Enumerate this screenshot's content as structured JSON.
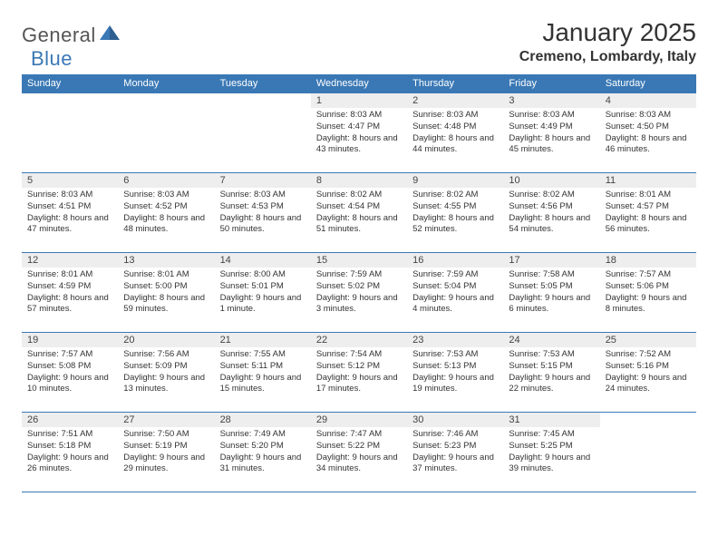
{
  "logo": {
    "text_general": "General",
    "text_blue": "Blue",
    "icon_fill": "#3a78b5"
  },
  "title": {
    "month_year": "January 2025",
    "location": "Cremeno, Lombardy, Italy"
  },
  "colors": {
    "header_bg": "#3a78b5",
    "header_text": "#ffffff",
    "daynum_bg": "#eeeeee",
    "border": "#3a78b5",
    "body_text": "#333333"
  },
  "weekdays": [
    "Sunday",
    "Monday",
    "Tuesday",
    "Wednesday",
    "Thursday",
    "Friday",
    "Saturday"
  ],
  "weeks": [
    [
      null,
      null,
      null,
      {
        "d": "1",
        "sr": "8:03 AM",
        "ss": "4:47 PM",
        "dl": "8 hours and 43 minutes."
      },
      {
        "d": "2",
        "sr": "8:03 AM",
        "ss": "4:48 PM",
        "dl": "8 hours and 44 minutes."
      },
      {
        "d": "3",
        "sr": "8:03 AM",
        "ss": "4:49 PM",
        "dl": "8 hours and 45 minutes."
      },
      {
        "d": "4",
        "sr": "8:03 AM",
        "ss": "4:50 PM",
        "dl": "8 hours and 46 minutes."
      }
    ],
    [
      {
        "d": "5",
        "sr": "8:03 AM",
        "ss": "4:51 PM",
        "dl": "8 hours and 47 minutes."
      },
      {
        "d": "6",
        "sr": "8:03 AM",
        "ss": "4:52 PM",
        "dl": "8 hours and 48 minutes."
      },
      {
        "d": "7",
        "sr": "8:03 AM",
        "ss": "4:53 PM",
        "dl": "8 hours and 50 minutes."
      },
      {
        "d": "8",
        "sr": "8:02 AM",
        "ss": "4:54 PM",
        "dl": "8 hours and 51 minutes."
      },
      {
        "d": "9",
        "sr": "8:02 AM",
        "ss": "4:55 PM",
        "dl": "8 hours and 52 minutes."
      },
      {
        "d": "10",
        "sr": "8:02 AM",
        "ss": "4:56 PM",
        "dl": "8 hours and 54 minutes."
      },
      {
        "d": "11",
        "sr": "8:01 AM",
        "ss": "4:57 PM",
        "dl": "8 hours and 56 minutes."
      }
    ],
    [
      {
        "d": "12",
        "sr": "8:01 AM",
        "ss": "4:59 PM",
        "dl": "8 hours and 57 minutes."
      },
      {
        "d": "13",
        "sr": "8:01 AM",
        "ss": "5:00 PM",
        "dl": "8 hours and 59 minutes."
      },
      {
        "d": "14",
        "sr": "8:00 AM",
        "ss": "5:01 PM",
        "dl": "9 hours and 1 minute."
      },
      {
        "d": "15",
        "sr": "7:59 AM",
        "ss": "5:02 PM",
        "dl": "9 hours and 3 minutes."
      },
      {
        "d": "16",
        "sr": "7:59 AM",
        "ss": "5:04 PM",
        "dl": "9 hours and 4 minutes."
      },
      {
        "d": "17",
        "sr": "7:58 AM",
        "ss": "5:05 PM",
        "dl": "9 hours and 6 minutes."
      },
      {
        "d": "18",
        "sr": "7:57 AM",
        "ss": "5:06 PM",
        "dl": "9 hours and 8 minutes."
      }
    ],
    [
      {
        "d": "19",
        "sr": "7:57 AM",
        "ss": "5:08 PM",
        "dl": "9 hours and 10 minutes."
      },
      {
        "d": "20",
        "sr": "7:56 AM",
        "ss": "5:09 PM",
        "dl": "9 hours and 13 minutes."
      },
      {
        "d": "21",
        "sr": "7:55 AM",
        "ss": "5:11 PM",
        "dl": "9 hours and 15 minutes."
      },
      {
        "d": "22",
        "sr": "7:54 AM",
        "ss": "5:12 PM",
        "dl": "9 hours and 17 minutes."
      },
      {
        "d": "23",
        "sr": "7:53 AM",
        "ss": "5:13 PM",
        "dl": "9 hours and 19 minutes."
      },
      {
        "d": "24",
        "sr": "7:53 AM",
        "ss": "5:15 PM",
        "dl": "9 hours and 22 minutes."
      },
      {
        "d": "25",
        "sr": "7:52 AM",
        "ss": "5:16 PM",
        "dl": "9 hours and 24 minutes."
      }
    ],
    [
      {
        "d": "26",
        "sr": "7:51 AM",
        "ss": "5:18 PM",
        "dl": "9 hours and 26 minutes."
      },
      {
        "d": "27",
        "sr": "7:50 AM",
        "ss": "5:19 PM",
        "dl": "9 hours and 29 minutes."
      },
      {
        "d": "28",
        "sr": "7:49 AM",
        "ss": "5:20 PM",
        "dl": "9 hours and 31 minutes."
      },
      {
        "d": "29",
        "sr": "7:47 AM",
        "ss": "5:22 PM",
        "dl": "9 hours and 34 minutes."
      },
      {
        "d": "30",
        "sr": "7:46 AM",
        "ss": "5:23 PM",
        "dl": "9 hours and 37 minutes."
      },
      {
        "d": "31",
        "sr": "7:45 AM",
        "ss": "5:25 PM",
        "dl": "9 hours and 39 minutes."
      },
      null
    ]
  ],
  "labels": {
    "sunrise": "Sunrise: ",
    "sunset": "Sunset: ",
    "daylight": "Daylight: "
  }
}
